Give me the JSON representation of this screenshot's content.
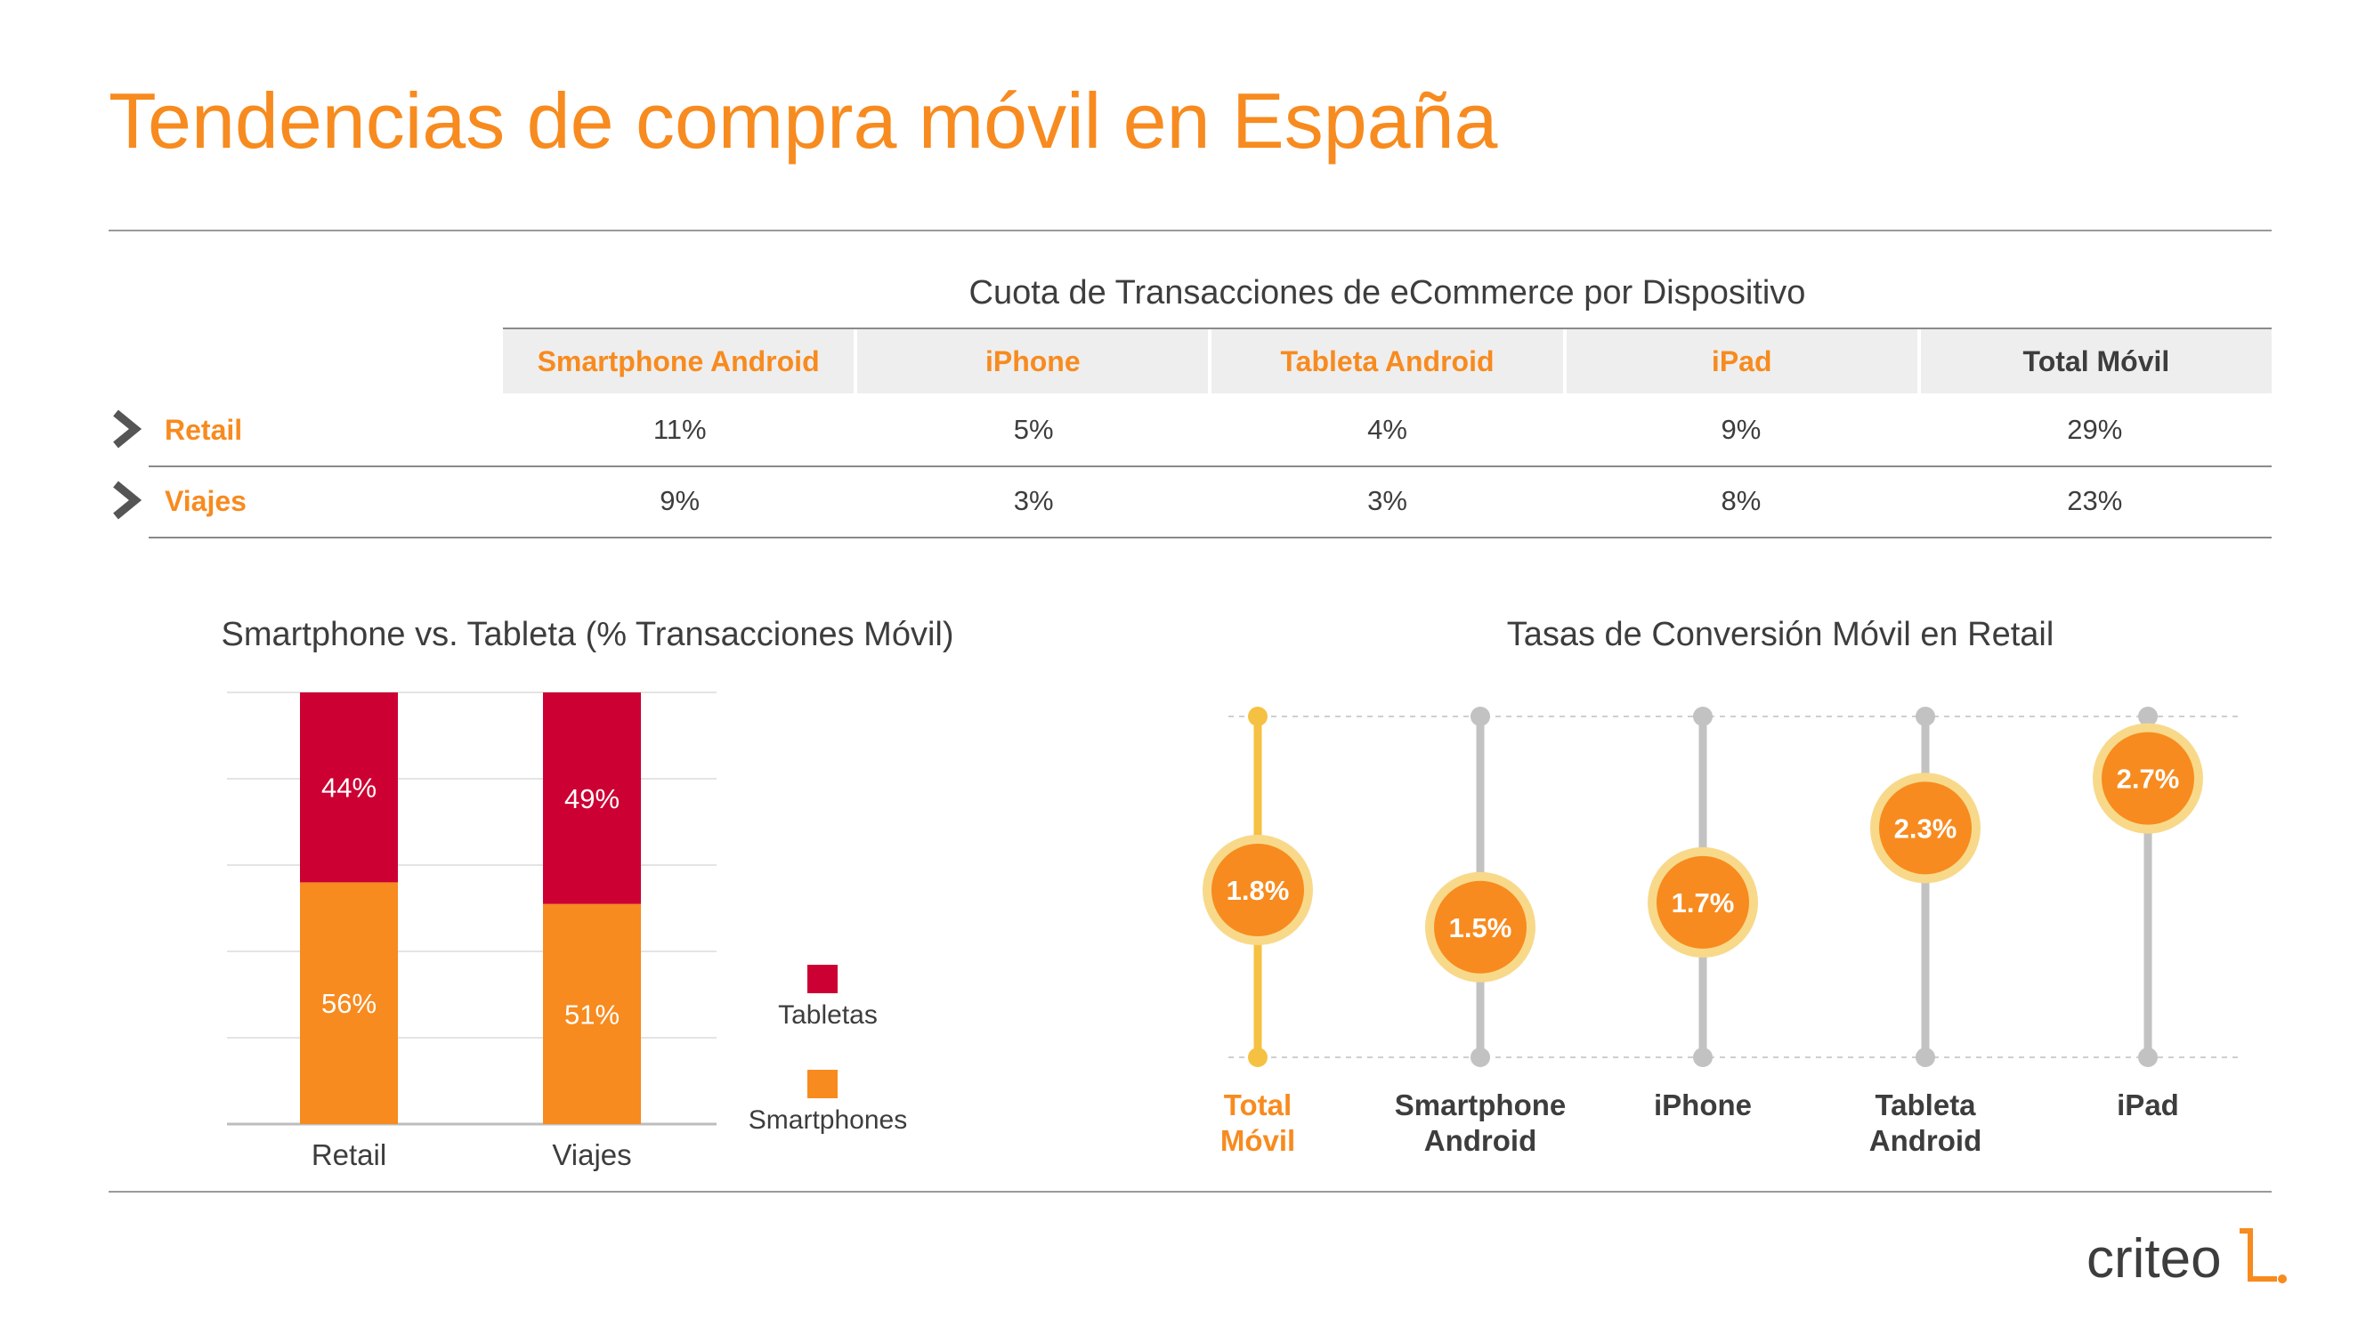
{
  "title": "Tendencias de compra móvil en España",
  "colors": {
    "orange": "#f78b1f",
    "crimson": "#cc0033",
    "gold": "#f5c142",
    "gray": "#c2c2c2",
    "text": "#3d3d3d"
  },
  "table": {
    "title": "Cuota de Transacciones de eCommerce por Dispositivo",
    "headers": [
      "Smartphone Android",
      "iPhone",
      "Tableta Android",
      "iPad",
      "Total Móvil"
    ],
    "rows": [
      {
        "label": "Retail",
        "values": [
          "11%",
          "5%",
          "4%",
          "9%",
          "29%"
        ]
      },
      {
        "label": "Viajes",
        "values": [
          "9%",
          "3%",
          "3%",
          "8%",
          "23%"
        ]
      }
    ]
  },
  "chart_data": [
    {
      "type": "bar",
      "stacked": true,
      "title": "Smartphone vs. Tableta (% Transacciones Móvil)",
      "categories": [
        "Retail",
        "Viajes"
      ],
      "series": [
        {
          "name": "Smartphones",
          "values": [
            56,
            51
          ],
          "labels": [
            "56%",
            "51%"
          ],
          "color": "#f78b1f"
        },
        {
          "name": "Tabletas",
          "values": [
            44,
            49
          ],
          "labels": [
            "44%",
            "49%"
          ],
          "color": "#cc0033"
        }
      ],
      "ylim": [
        0,
        100
      ],
      "grid": true,
      "legend": "right"
    },
    {
      "type": "scatter",
      "title": "Tasas de Conversión Móvil en Retail",
      "categories": [
        "Total Móvil",
        "Smartphone Android",
        "iPhone",
        "Tableta Android",
        "iPad"
      ],
      "category_lines": [
        [
          "Total",
          "Móvil"
        ],
        [
          "Smartphone",
          "Android"
        ],
        [
          "iPhone"
        ],
        [
          "Tableta",
          "Android"
        ],
        [
          "iPad"
        ]
      ],
      "values": [
        1.8,
        1.5,
        1.7,
        2.3,
        2.7
      ],
      "labels": [
        "1.8%",
        "1.5%",
        "1.7%",
        "2.3%",
        "2.7%"
      ],
      "highlight_index": 0
    }
  ],
  "logo": {
    "text": "criteo"
  }
}
